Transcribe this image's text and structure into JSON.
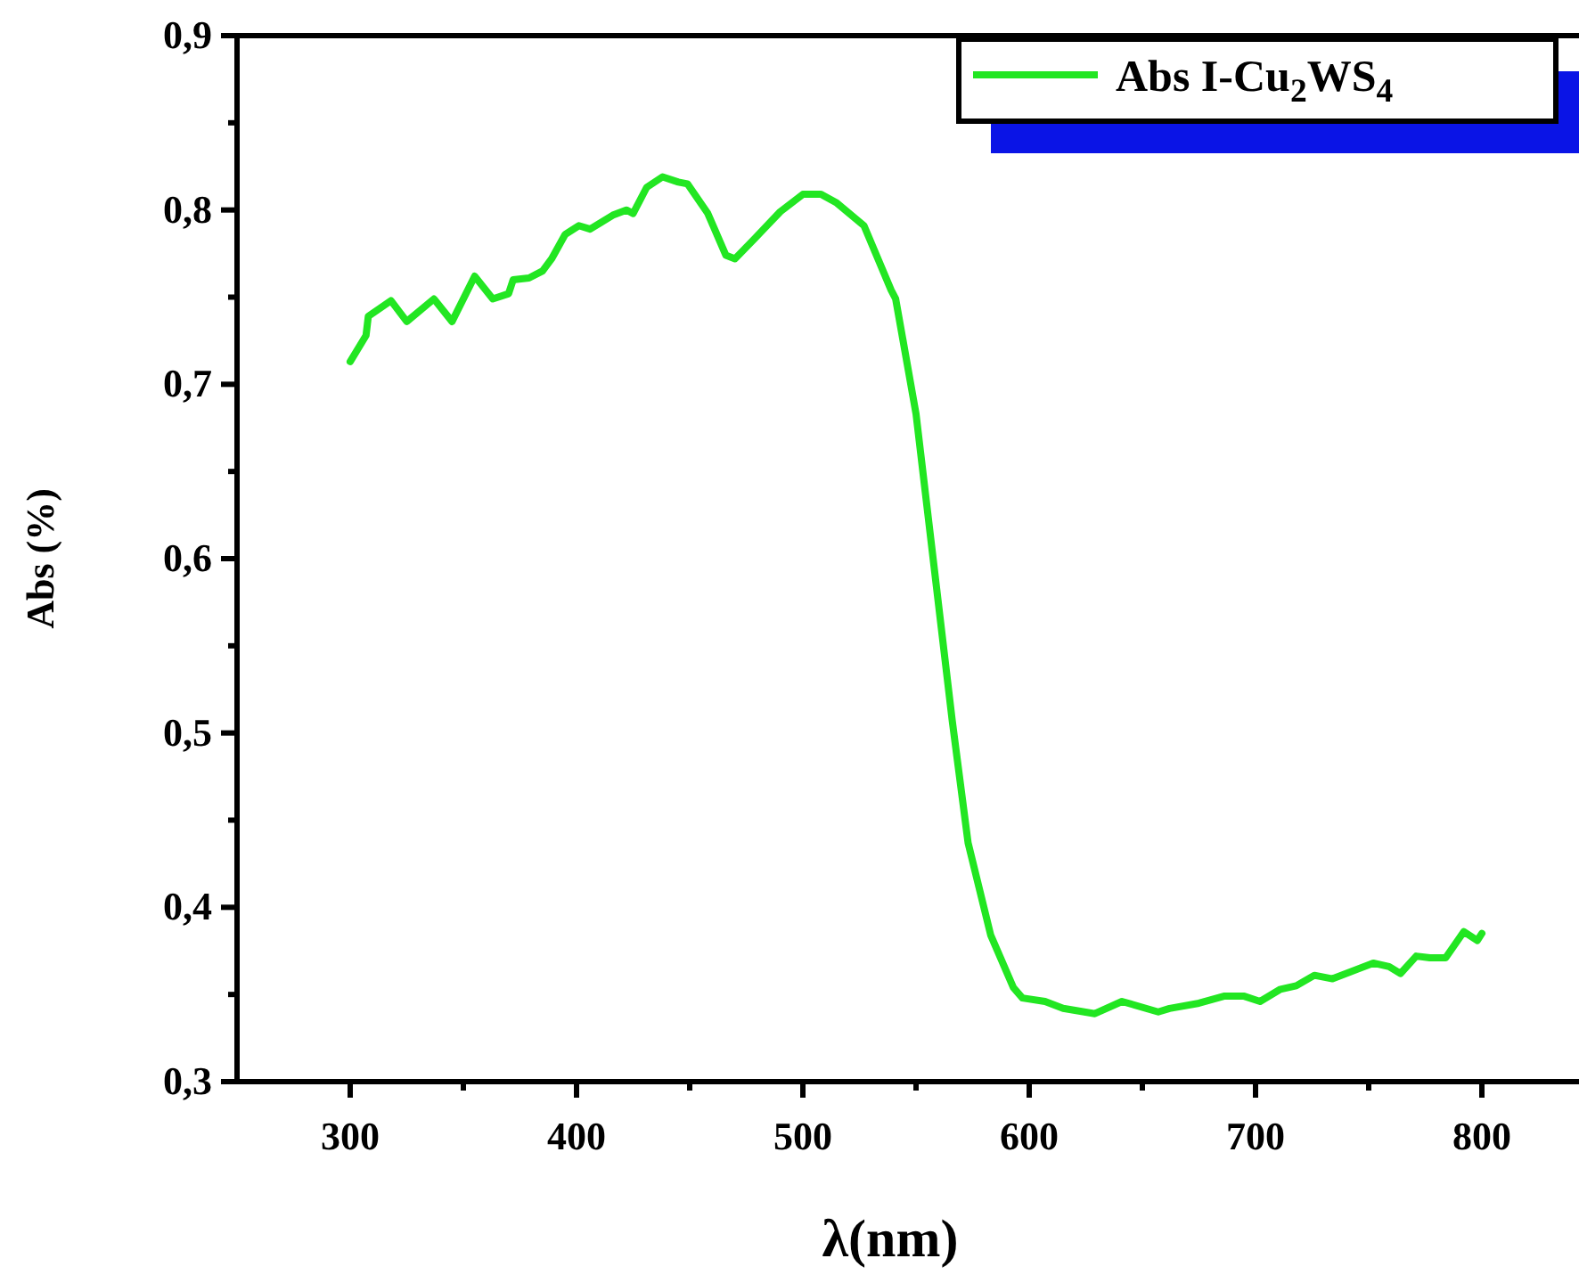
{
  "chart_data": {
    "type": "line",
    "xlabel": "λ(nm)",
    "ylabel": "Abs (%)",
    "xlim": [
      250,
      850
    ],
    "xticks": [
      {
        "value": 300,
        "label": "300"
      },
      {
        "value": 350,
        "label": null
      },
      {
        "value": 400,
        "label": "400"
      },
      {
        "value": 450,
        "label": null
      },
      {
        "value": 500,
        "label": "500"
      },
      {
        "value": 550,
        "label": null
      },
      {
        "value": 600,
        "label": "600"
      },
      {
        "value": 650,
        "label": null
      },
      {
        "value": 700,
        "label": "700"
      },
      {
        "value": 750,
        "label": null
      },
      {
        "value": 800,
        "label": "800"
      }
    ],
    "ylim": [
      0.3,
      0.9
    ],
    "yticks": [
      {
        "value": 0.3,
        "label": "0,3"
      },
      {
        "value": 0.35,
        "label": null
      },
      {
        "value": 0.4,
        "label": "0,4"
      },
      {
        "value": 0.45,
        "label": null
      },
      {
        "value": 0.5,
        "label": "0,5"
      },
      {
        "value": 0.55,
        "label": null
      },
      {
        "value": 0.6,
        "label": "0,6"
      },
      {
        "value": 0.65,
        "label": null
      },
      {
        "value": 0.7,
        "label": "0,7"
      },
      {
        "value": 0.75,
        "label": null
      },
      {
        "value": 0.8,
        "label": "0,8"
      },
      {
        "value": 0.85,
        "label": null
      },
      {
        "value": 0.9,
        "label": "0,9"
      }
    ],
    "legend": "top right",
    "grid": false,
    "line_style": "solid",
    "marker": "none",
    "series": [
      {
        "name": "Abs I-Cu$_{2}$WS$_{4}$",
        "color": "#22e622",
        "x": [
          300,
          307,
          308,
          318,
          325,
          337,
          345,
          355,
          363,
          370,
          372,
          379,
          385,
          389,
          395,
          401,
          406,
          416,
          422,
          425,
          431,
          438,
          445,
          449,
          458,
          466,
          470,
          479,
          490,
          500,
          508,
          515,
          527,
          539,
          541,
          550,
          558,
          566,
          573,
          583,
          593,
          597,
          607,
          615,
          629,
          641,
          657,
          662,
          675,
          686,
          695,
          702,
          711,
          718,
          726,
          734,
          752,
          759,
          764,
          771,
          777,
          784,
          792,
          798,
          800
        ],
        "values": [
          0.713,
          0.728,
          0.739,
          0.748,
          0.736,
          0.749,
          0.736,
          0.762,
          0.749,
          0.752,
          0.76,
          0.761,
          0.765,
          0.772,
          0.786,
          0.791,
          0.789,
          0.797,
          0.8,
          0.798,
          0.813,
          0.819,
          0.816,
          0.815,
          0.798,
          0.774,
          0.772,
          0.784,
          0.799,
          0.809,
          0.809,
          0.804,
          0.791,
          0.754,
          0.749,
          0.683,
          0.595,
          0.507,
          0.437,
          0.384,
          0.354,
          0.348,
          0.346,
          0.342,
          0.339,
          0.346,
          0.34,
          0.342,
          0.345,
          0.349,
          0.349,
          0.346,
          0.353,
          0.355,
          0.361,
          0.359,
          0.368,
          0.366,
          0.362,
          0.372,
          0.371,
          0.371,
          0.386,
          0.381,
          0.385
        ]
      }
    ]
  }
}
